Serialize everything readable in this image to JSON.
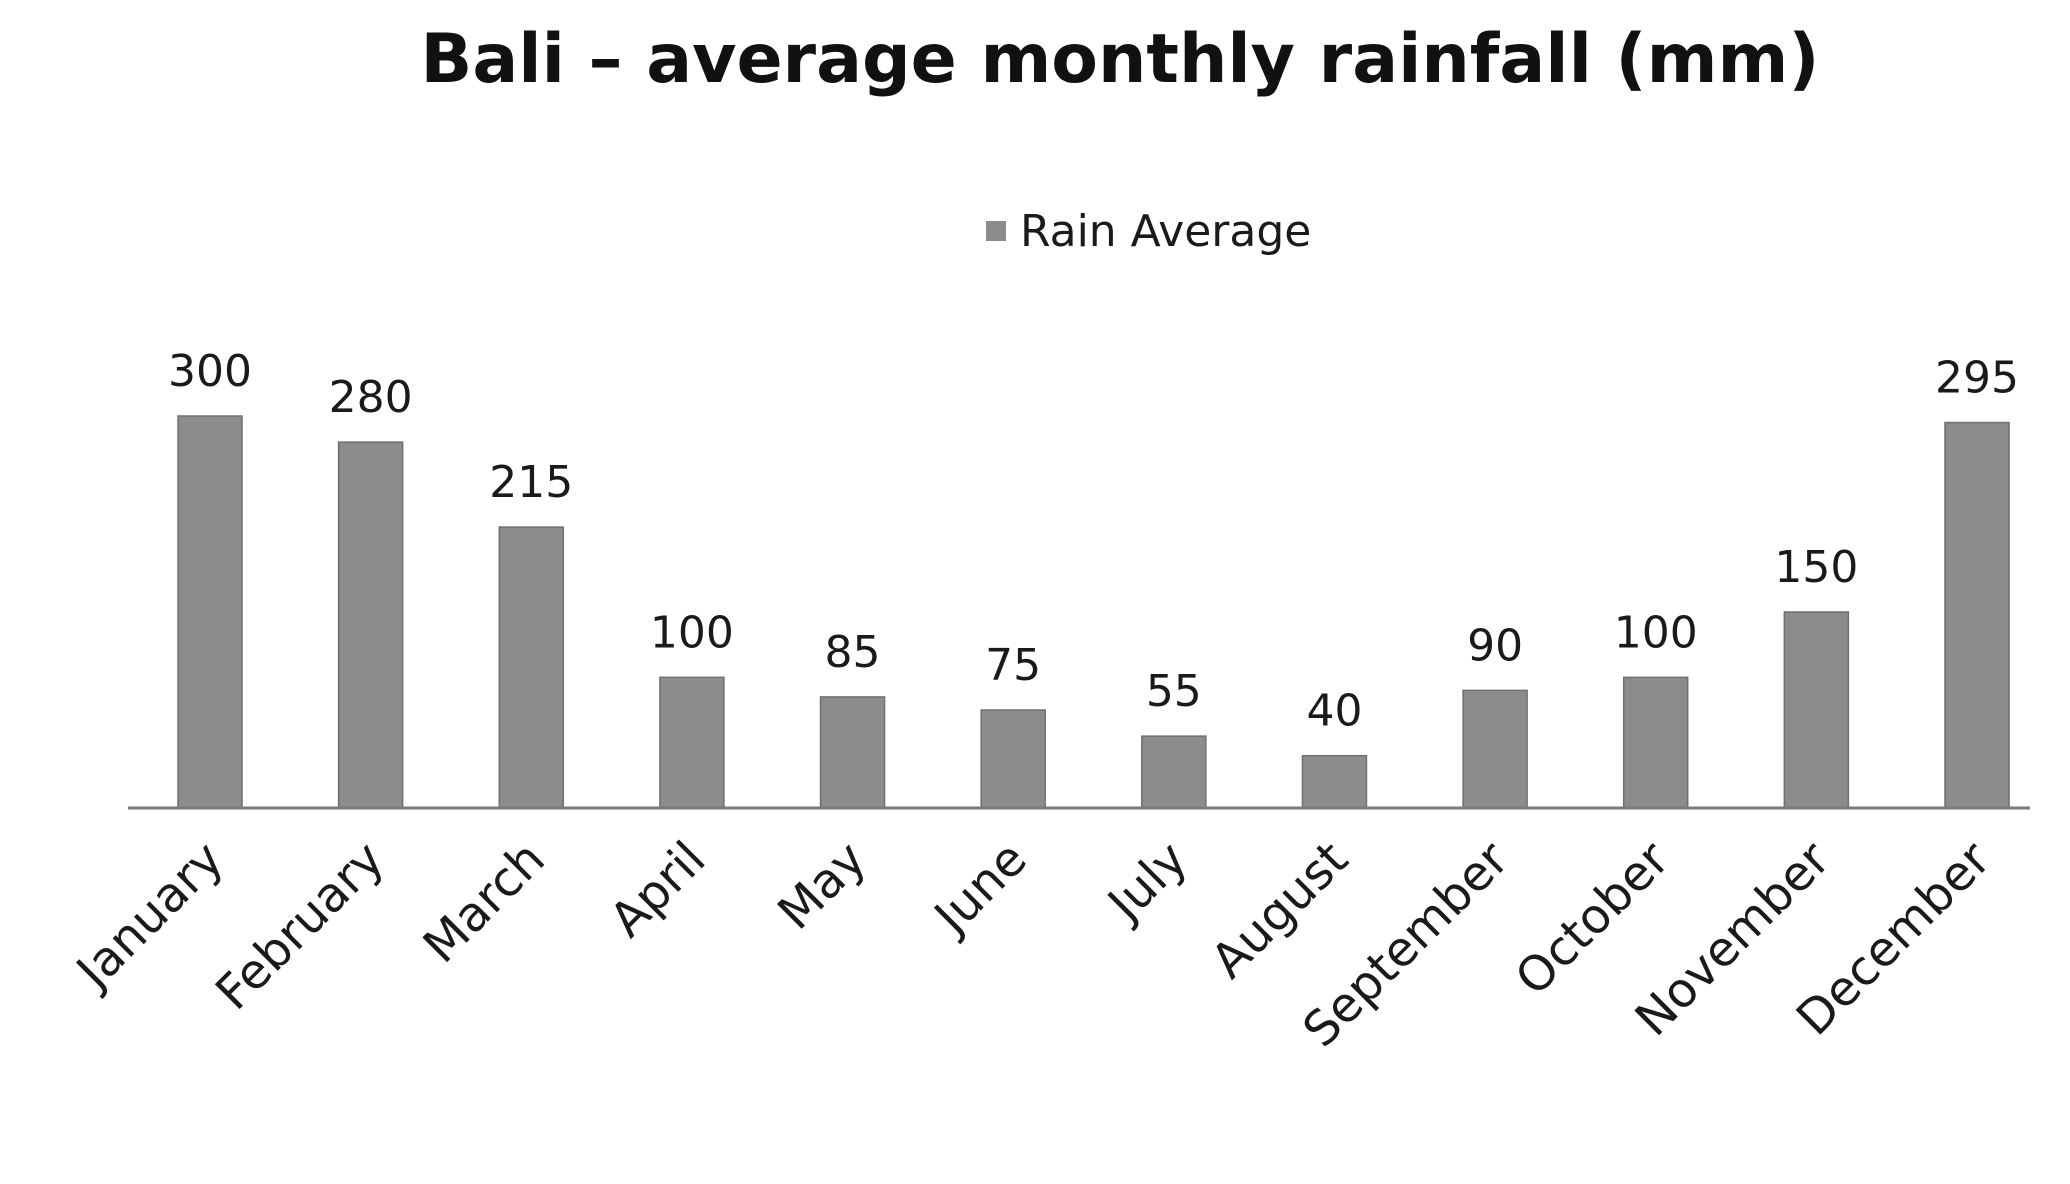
{
  "chart_data": {
    "type": "bar",
    "title": "Bali – average monthly rainfall (mm)",
    "xlabel": "",
    "ylabel": "",
    "ylim": [
      0,
      300
    ],
    "grid": false,
    "legend_position": "top-center",
    "categories": [
      "January",
      "February",
      "March",
      "April",
      "May",
      "June",
      "July",
      "August",
      "September",
      "October",
      "November",
      "December"
    ],
    "series": [
      {
        "name": "Rain Average",
        "values": [
          300,
          280,
          215,
          100,
          85,
          75,
          55,
          40,
          90,
          100,
          150,
          295
        ],
        "color": "#8c8c8c"
      }
    ]
  }
}
